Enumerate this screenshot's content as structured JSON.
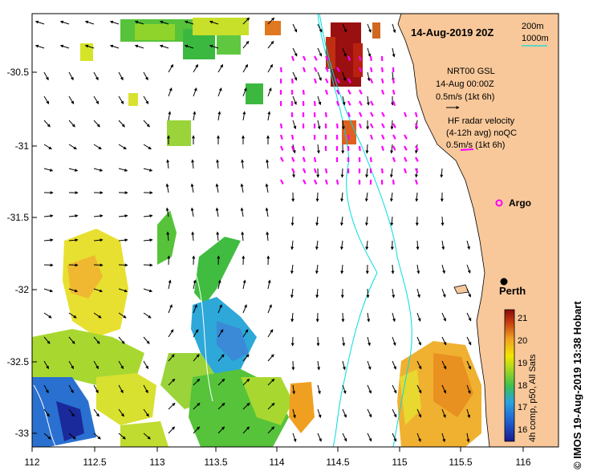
{
  "title": "14-Aug-2019 20Z",
  "depth_legend": {
    "contour_200": "200m",
    "contour_1000": "1000m",
    "color": "#00dddd"
  },
  "x_axis": {
    "ticks": [
      "112",
      "112.5",
      "113",
      "113.5",
      "114",
      "114.5",
      "115",
      "115.5",
      "116"
    ]
  },
  "y_axis": {
    "ticks": [
      "-30.5",
      "-31",
      "-31.5",
      "-32",
      "-32.5",
      "-33"
    ]
  },
  "gsl_legend": {
    "line1": "NRT00 GSL",
    "line2": "14-Aug 00:00Z",
    "line3": "0.5m/s (1kt 6h)"
  },
  "hf_legend": {
    "line1": "HF radar velocity",
    "line2": "(4-12h avg) noQC",
    "line3": "0.5m/s (1kt 6h)",
    "color": "#ff00ff"
  },
  "argo": {
    "label": "Argo",
    "color": "#ff00ff"
  },
  "city": {
    "label": "Perth"
  },
  "colorbar": {
    "ticks": [
      "21",
      "20",
      "19",
      "18",
      "17",
      "16"
    ],
    "label": "4h comp, p50, All Sats"
  },
  "credit": "© IMOS 19-Aug-2019 13:38 Hobart",
  "land_color": "#f8c89a"
}
